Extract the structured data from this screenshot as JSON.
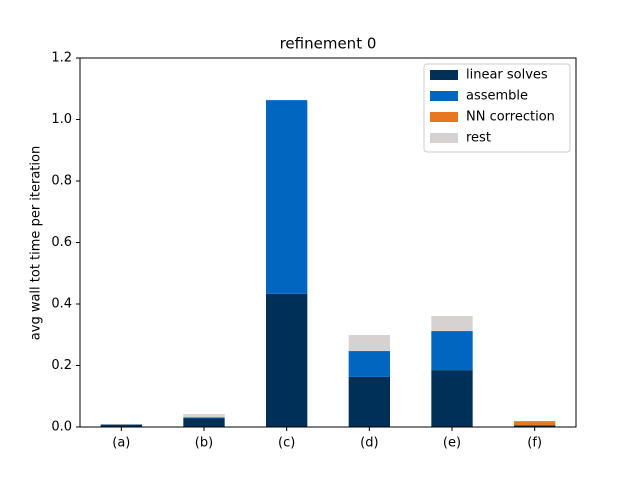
{
  "chart_data": {
    "type": "stacked_bar",
    "title": "refinement 0",
    "y_label": "avg wall tot time per iteration",
    "categories": [
      "(a)",
      "(b)",
      "(c)",
      "(d)",
      "(e)",
      "(f)"
    ],
    "series": [
      {
        "name": "linear solves",
        "color": "#003057",
        "values": [
          0.008,
          0.029,
          0.433,
          0.163,
          0.185,
          0.005
        ]
      },
      {
        "name": "assemble",
        "color": "#0066bf",
        "values": [
          0,
          0.002,
          0.63,
          0.084,
          0.127,
          0
        ]
      },
      {
        "name": "NN correction",
        "color": "#e87722",
        "values": [
          0,
          0,
          0,
          0,
          0,
          0.014
        ]
      },
      {
        "name": "rest",
        "color": "#d6d2d2",
        "values": [
          0,
          0.011,
          0,
          0.052,
          0.049,
          0
        ]
      }
    ],
    "ylim": [
      0,
      1.2
    ],
    "yticks": [
      {
        "value": 0,
        "label": "0.0"
      },
      0.2,
      0.4,
      0.6,
      0.8,
      {
        "value": 1,
        "label": "1.0"
      },
      1.2
    ],
    "legend": "upper right"
  }
}
